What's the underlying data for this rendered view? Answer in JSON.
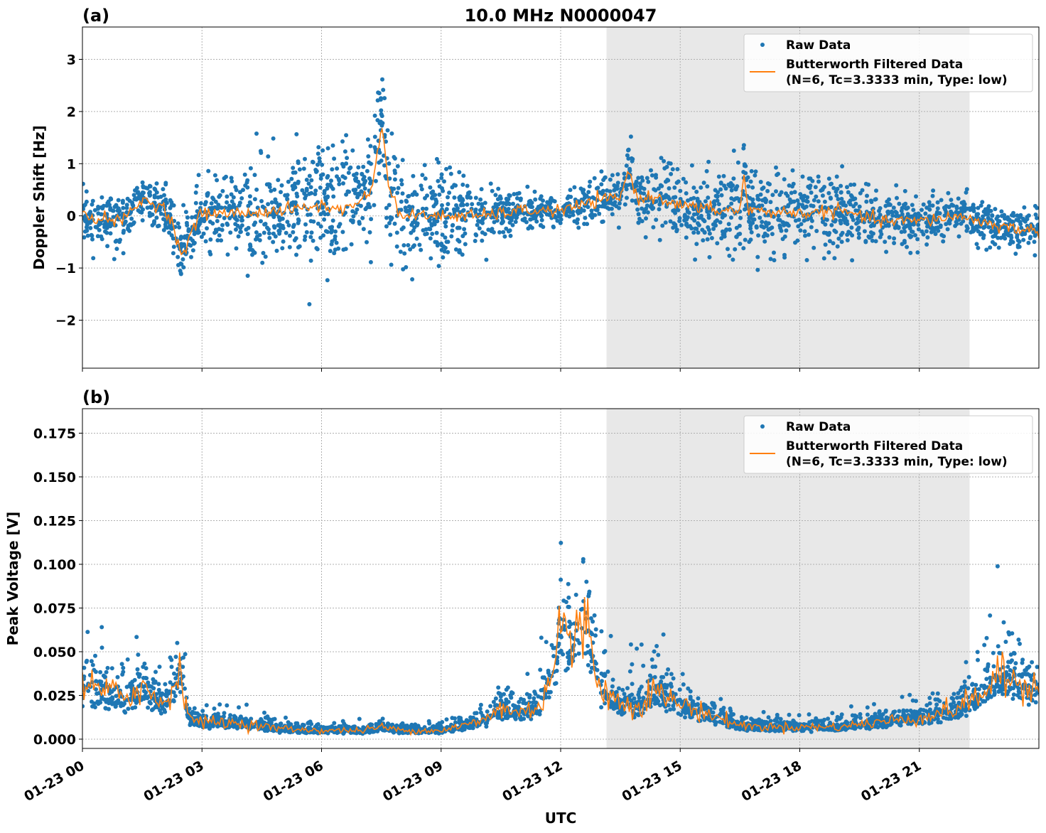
{
  "chart_data": [
    {
      "panel_label": "(a)",
      "type": "scatter+line",
      "title": "10.0 MHz N0000047",
      "xlabel": "",
      "ylabel": "Doppler Shift [Hz]",
      "x_unit": "hours UTC on 01-23",
      "xlim": [
        0,
        24
      ],
      "ylim": [
        -2.92,
        3.62
      ],
      "yticks": [
        3,
        2,
        1,
        0,
        -1,
        -2
      ],
      "ytick_labels": [
        "3",
        "2",
        "1",
        "0",
        "−1",
        "−2"
      ],
      "xticks": [
        0,
        3,
        6,
        9,
        12,
        15,
        18,
        21
      ],
      "grid": true,
      "shaded_interval_hours": [
        13.15,
        22.26
      ],
      "legend_position": "top-right",
      "legend": [
        "Raw Data",
        "Butterworth Filtered Data",
        "(N=6, Tc=3.3333 min, Type: low)"
      ],
      "series": [
        {
          "name": "Butterworth Filtered Data",
          "kind": "line",
          "color": "#ff7f0e",
          "x": [
            0,
            1,
            1.5,
            2,
            2.3,
            2.5,
            2.8,
            3,
            4,
            5,
            6,
            6.5,
            7,
            7.3,
            7.5,
            7.7,
            8,
            9,
            10,
            11,
            12,
            12.5,
            13,
            13.5,
            13.7,
            13.9,
            14.5,
            15,
            16,
            16.5,
            16.6,
            16.7,
            18,
            19,
            20,
            21,
            22,
            23,
            24
          ],
          "y": [
            0.0,
            -0.1,
            0.3,
            0.2,
            -0.2,
            -0.8,
            -0.2,
            0.05,
            0.05,
            0.1,
            0.2,
            0.1,
            0.3,
            0.6,
            1.8,
            0.5,
            0.0,
            0.0,
            0.0,
            0.1,
            0.1,
            0.2,
            0.3,
            0.35,
            0.9,
            0.35,
            0.35,
            0.2,
            0.1,
            0.1,
            0.8,
            0.1,
            0.05,
            0.1,
            -0.1,
            -0.1,
            0.0,
            -0.2,
            -0.3
          ]
        },
        {
          "name": "Raw Data",
          "kind": "scatter",
          "color": "#1f77b4",
          "spread_x": [
            0,
            2,
            3,
            5,
            7,
            7.5,
            8,
            9,
            10,
            11,
            12,
            13,
            14,
            15,
            16,
            18,
            19,
            20,
            21,
            22,
            24
          ],
          "spread_y": [
            0.3,
            0.3,
            0.5,
            0.7,
            0.8,
            0.8,
            0.7,
            0.6,
            0.4,
            0.25,
            0.15,
            0.3,
            0.35,
            0.4,
            0.55,
            0.5,
            0.5,
            0.35,
            0.3,
            0.25,
            0.3
          ]
        }
      ]
    },
    {
      "panel_label": "(b)",
      "type": "scatter+line",
      "title": "",
      "xlabel": "UTC",
      "ylabel": "Peak Voltage [V]",
      "xlim": [
        0,
        24
      ],
      "ylim": [
        -0.0053,
        0.189
      ],
      "yticks": [
        0,
        0.025,
        0.05,
        0.075,
        0.1,
        0.125,
        0.15,
        0.175
      ],
      "ytick_labels": [
        "0.000",
        "0.025",
        "0.050",
        "0.075",
        "0.100",
        "0.125",
        "0.150",
        "0.175"
      ],
      "xticks": [
        0,
        3,
        6,
        9,
        12,
        15,
        18,
        21
      ],
      "xtick_labels": [
        "01-23 00",
        "01-23 03",
        "01-23 06",
        "01-23 09",
        "01-23 12",
        "01-23 15",
        "01-23 18",
        "01-23 21"
      ],
      "grid": true,
      "shaded_interval_hours": [
        13.15,
        22.26
      ],
      "legend_position": "top-right",
      "legend": [
        "Raw Data",
        "Butterworth Filtered Data",
        "(N=6, Tc=3.3333 min, Type: low)"
      ],
      "series": [
        {
          "name": "Butterworth Filtered Data",
          "kind": "line",
          "color": "#ff7f0e",
          "x": [
            0,
            1,
            1.5,
            2,
            2.5,
            2.7,
            3,
            4,
            5,
            6,
            7,
            7.5,
            8,
            9,
            10,
            10.5,
            11,
            11.5,
            11.8,
            12,
            12.3,
            12.6,
            13,
            13.5,
            14,
            14.3,
            15,
            16,
            16.5,
            17,
            19,
            20,
            21,
            22,
            22.5,
            23,
            24
          ],
          "y": [
            0.03,
            0.025,
            0.03,
            0.02,
            0.038,
            0.012,
            0.01,
            0.009,
            0.006,
            0.005,
            0.005,
            0.007,
            0.005,
            0.005,
            0.01,
            0.018,
            0.015,
            0.02,
            0.04,
            0.07,
            0.05,
            0.07,
            0.03,
            0.02,
            0.02,
            0.028,
            0.02,
            0.012,
            0.008,
            0.007,
            0.007,
            0.01,
            0.012,
            0.018,
            0.025,
            0.035,
            0.03
          ]
        },
        {
          "name": "Raw Data",
          "kind": "scatter",
          "color": "#1f77b4"
        }
      ]
    }
  ]
}
